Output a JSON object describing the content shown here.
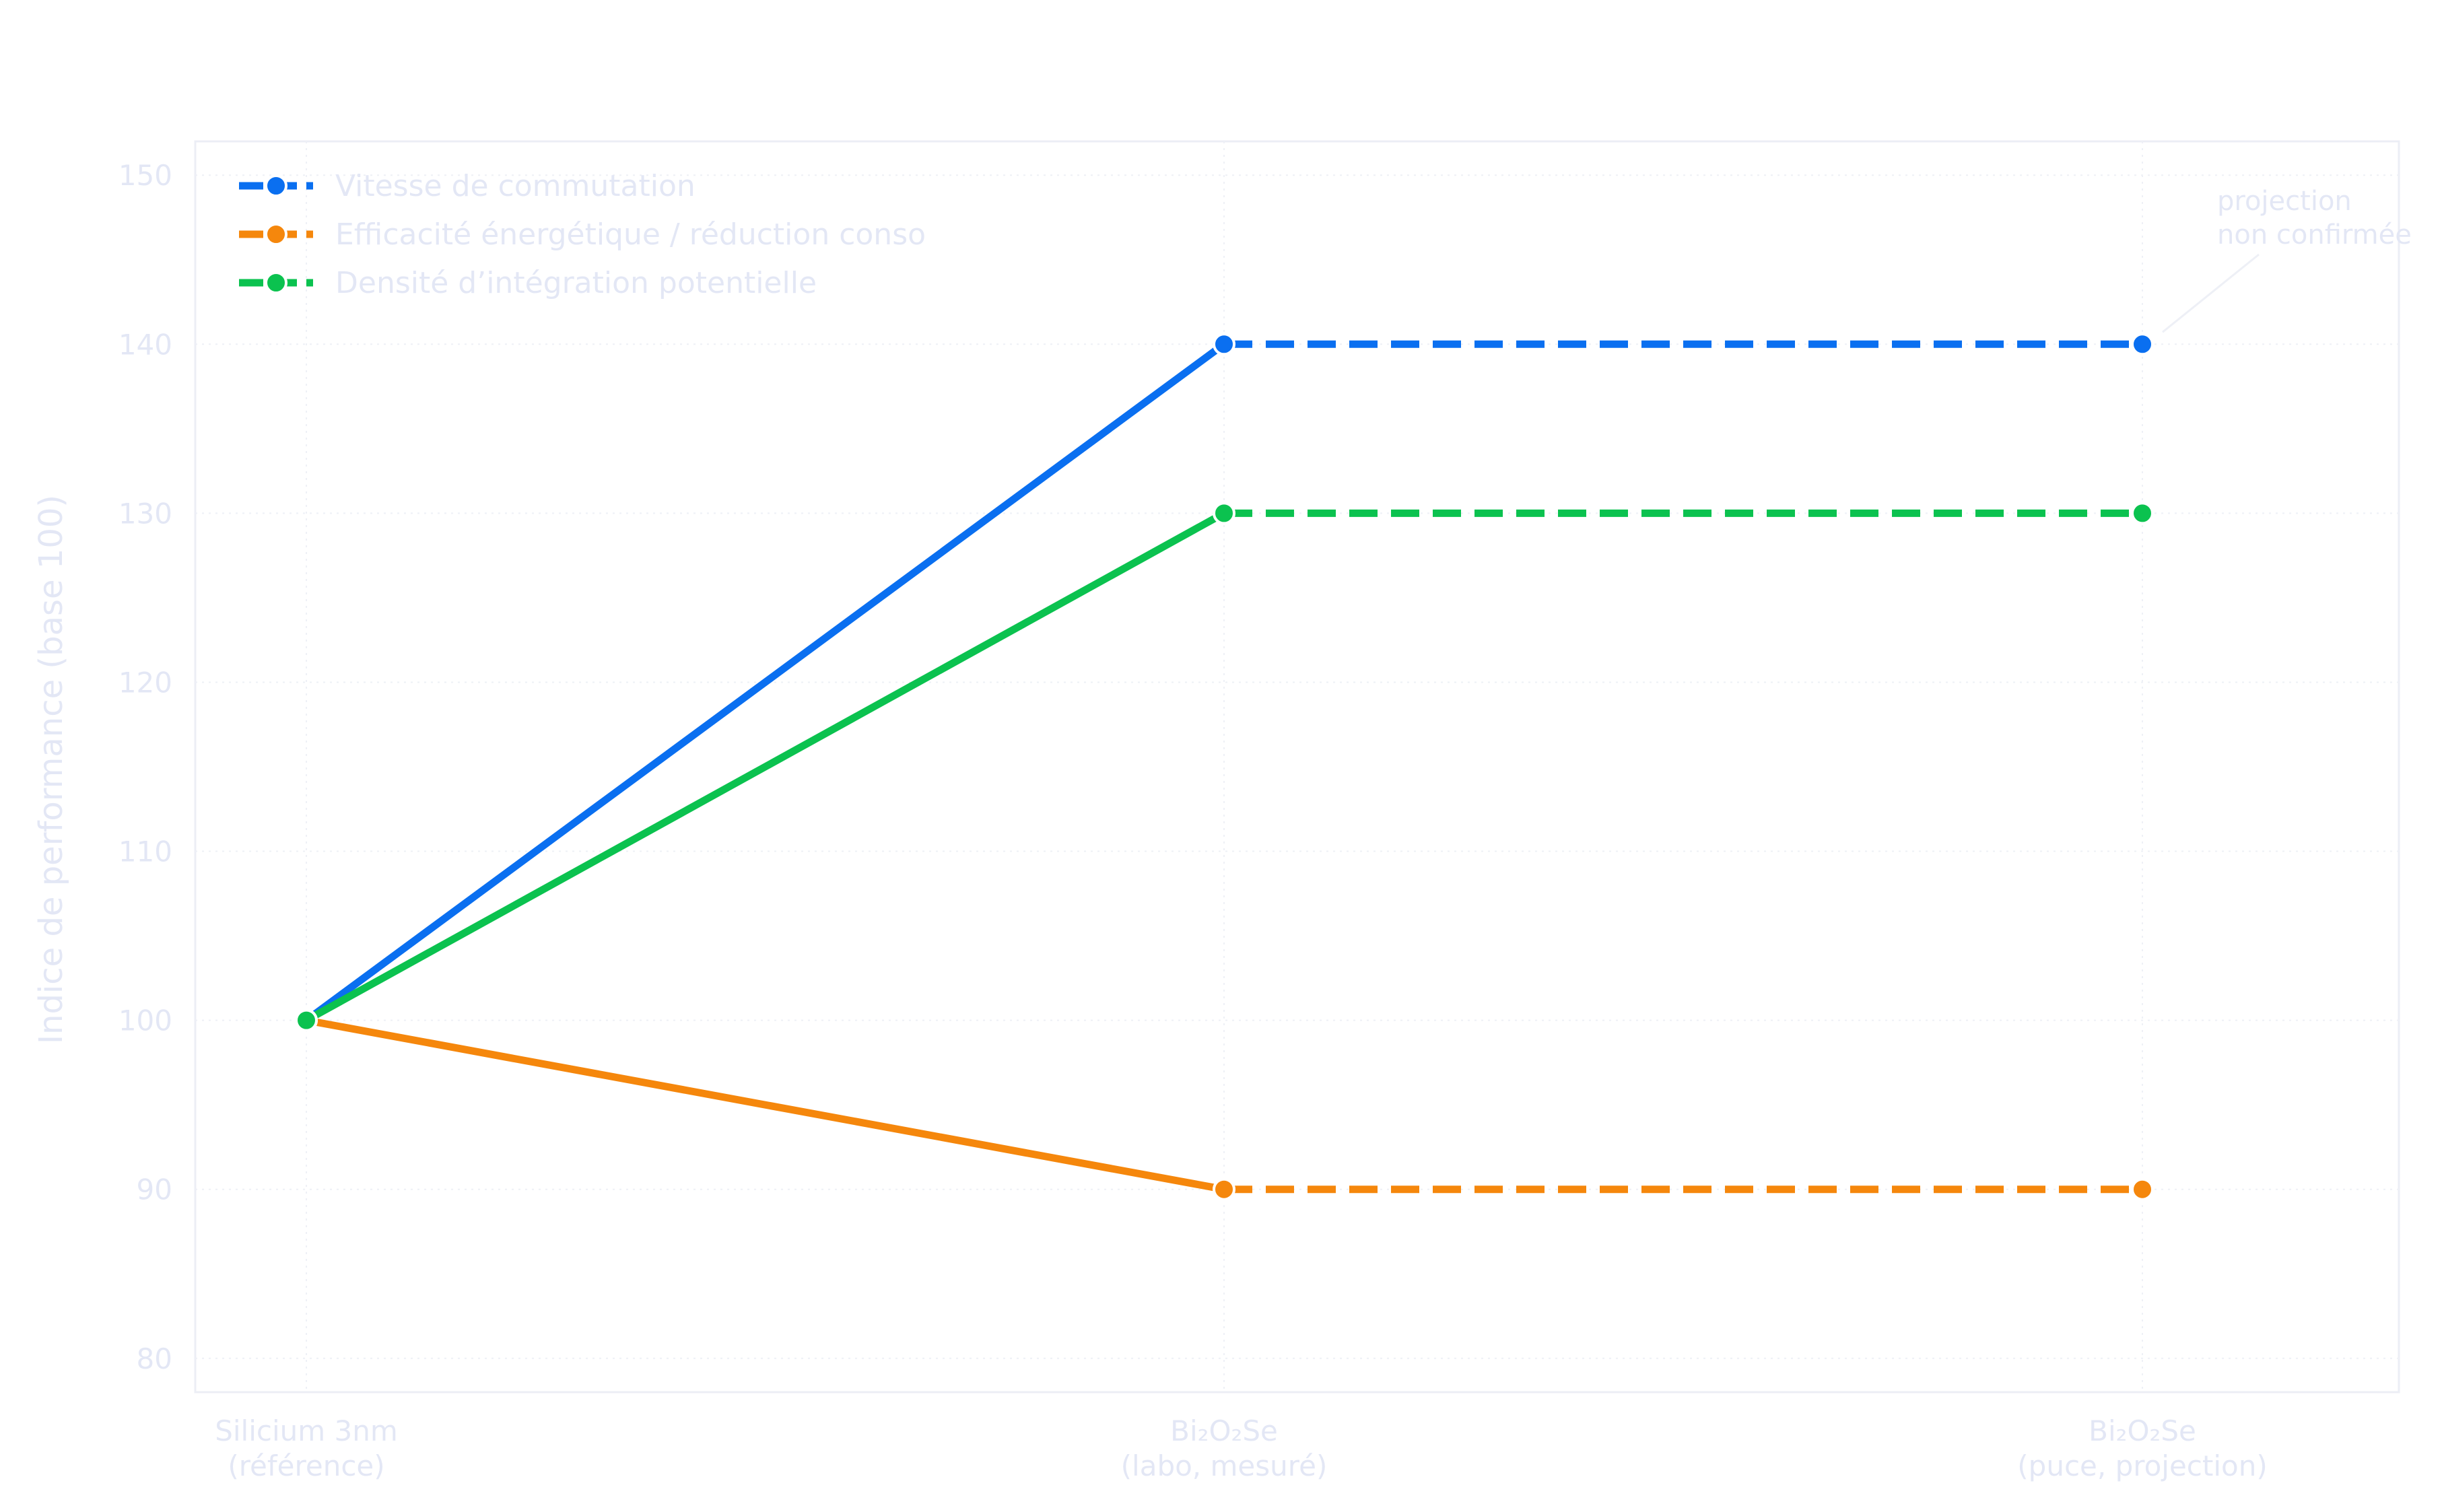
{
  "chart_data": {
    "type": "line",
    "title": "",
    "xlabel": "",
    "ylabel": "Indice de performance (base 100)",
    "categories": [
      [
        "Silicium 3nm",
        "(référence)"
      ],
      [
        "Bi₂O₂Se",
        "(labo, mesuré)"
      ],
      [
        "Bi₂O₂Se",
        "(puce, projection)"
      ]
    ],
    "ylim": [
      78,
      152
    ],
    "yticks": [
      80,
      90,
      100,
      110,
      120,
      130,
      140,
      150
    ],
    "grid": true,
    "legend_position": "top-left",
    "series": [
      {
        "name": "Vitesse de commutation",
        "values": [
          100,
          140,
          140
        ],
        "color": "#0a6ff0"
      },
      {
        "name": "Efficacité énergétique / réduction conso",
        "values": [
          100,
          90,
          90
        ],
        "color": "#f5870c"
      },
      {
        "name": "Densité d’intégration potentielle",
        "values": [
          100,
          130,
          130
        ],
        "color": "#0bc24f"
      }
    ],
    "solid_until_category": 1,
    "annotation": {
      "lines": [
        "projection",
        "non confirmée"
      ],
      "target_category": 2,
      "target_value": 140
    },
    "colors": {
      "axis_text": "#e3e7f5",
      "grid": "#eef0f6",
      "frame": "#eceef5"
    }
  }
}
